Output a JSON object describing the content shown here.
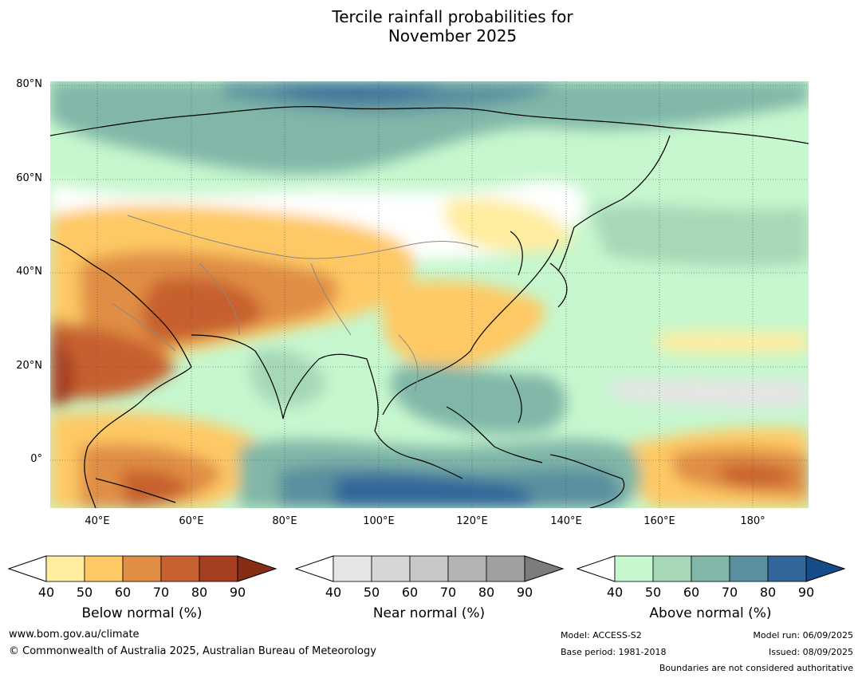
{
  "title": {
    "line1": "Tercile rainfall probabilities for",
    "line2": "November 2025"
  },
  "map": {
    "lat_labels": [
      "80°N",
      "60°N",
      "40°N",
      "20°N",
      "0°"
    ],
    "lon_labels": [
      "40°E",
      "60°E",
      "80°E",
      "100°E",
      "120°E",
      "140°E",
      "160°E",
      "180°"
    ]
  },
  "colorbars": [
    {
      "title": "Below normal (%)",
      "ticks": [
        "40",
        "50",
        "60",
        "70",
        "80",
        "90"
      ],
      "colors": [
        "#ffeda0",
        "#fec965",
        "#e08e45",
        "#c7612f",
        "#a63e22"
      ],
      "extend_color": "#852d15"
    },
    {
      "title": "Near normal (%)",
      "ticks": [
        "40",
        "50",
        "60",
        "70",
        "80",
        "90"
      ],
      "colors": [
        "#e5e5e5",
        "#d6d6d6",
        "#c8c8c8",
        "#b4b4b4",
        "#a0a0a0"
      ],
      "extend_color": "#7c7c7c"
    },
    {
      "title": "Above normal (%)",
      "ticks": [
        "40",
        "50",
        "60",
        "70",
        "80",
        "90"
      ],
      "colors": [
        "#c6f7ce",
        "#a6d8b7",
        "#80b7a8",
        "#5a8f9f",
        "#33669a"
      ],
      "extend_color": "#134c88"
    }
  ],
  "footer": {
    "website": "www.bom.gov.au/climate",
    "copyright": "© Commonwealth of Australia 2025, Australian Bureau of Meteorology",
    "model": "Model: ACCESS-S2",
    "base_period": "Base period: 1981-2018",
    "model_run": "Model run: 06/09/2025",
    "issued": "Issued: 08/09/2025",
    "boundaries": "Boundaries are not considered authoritative"
  }
}
